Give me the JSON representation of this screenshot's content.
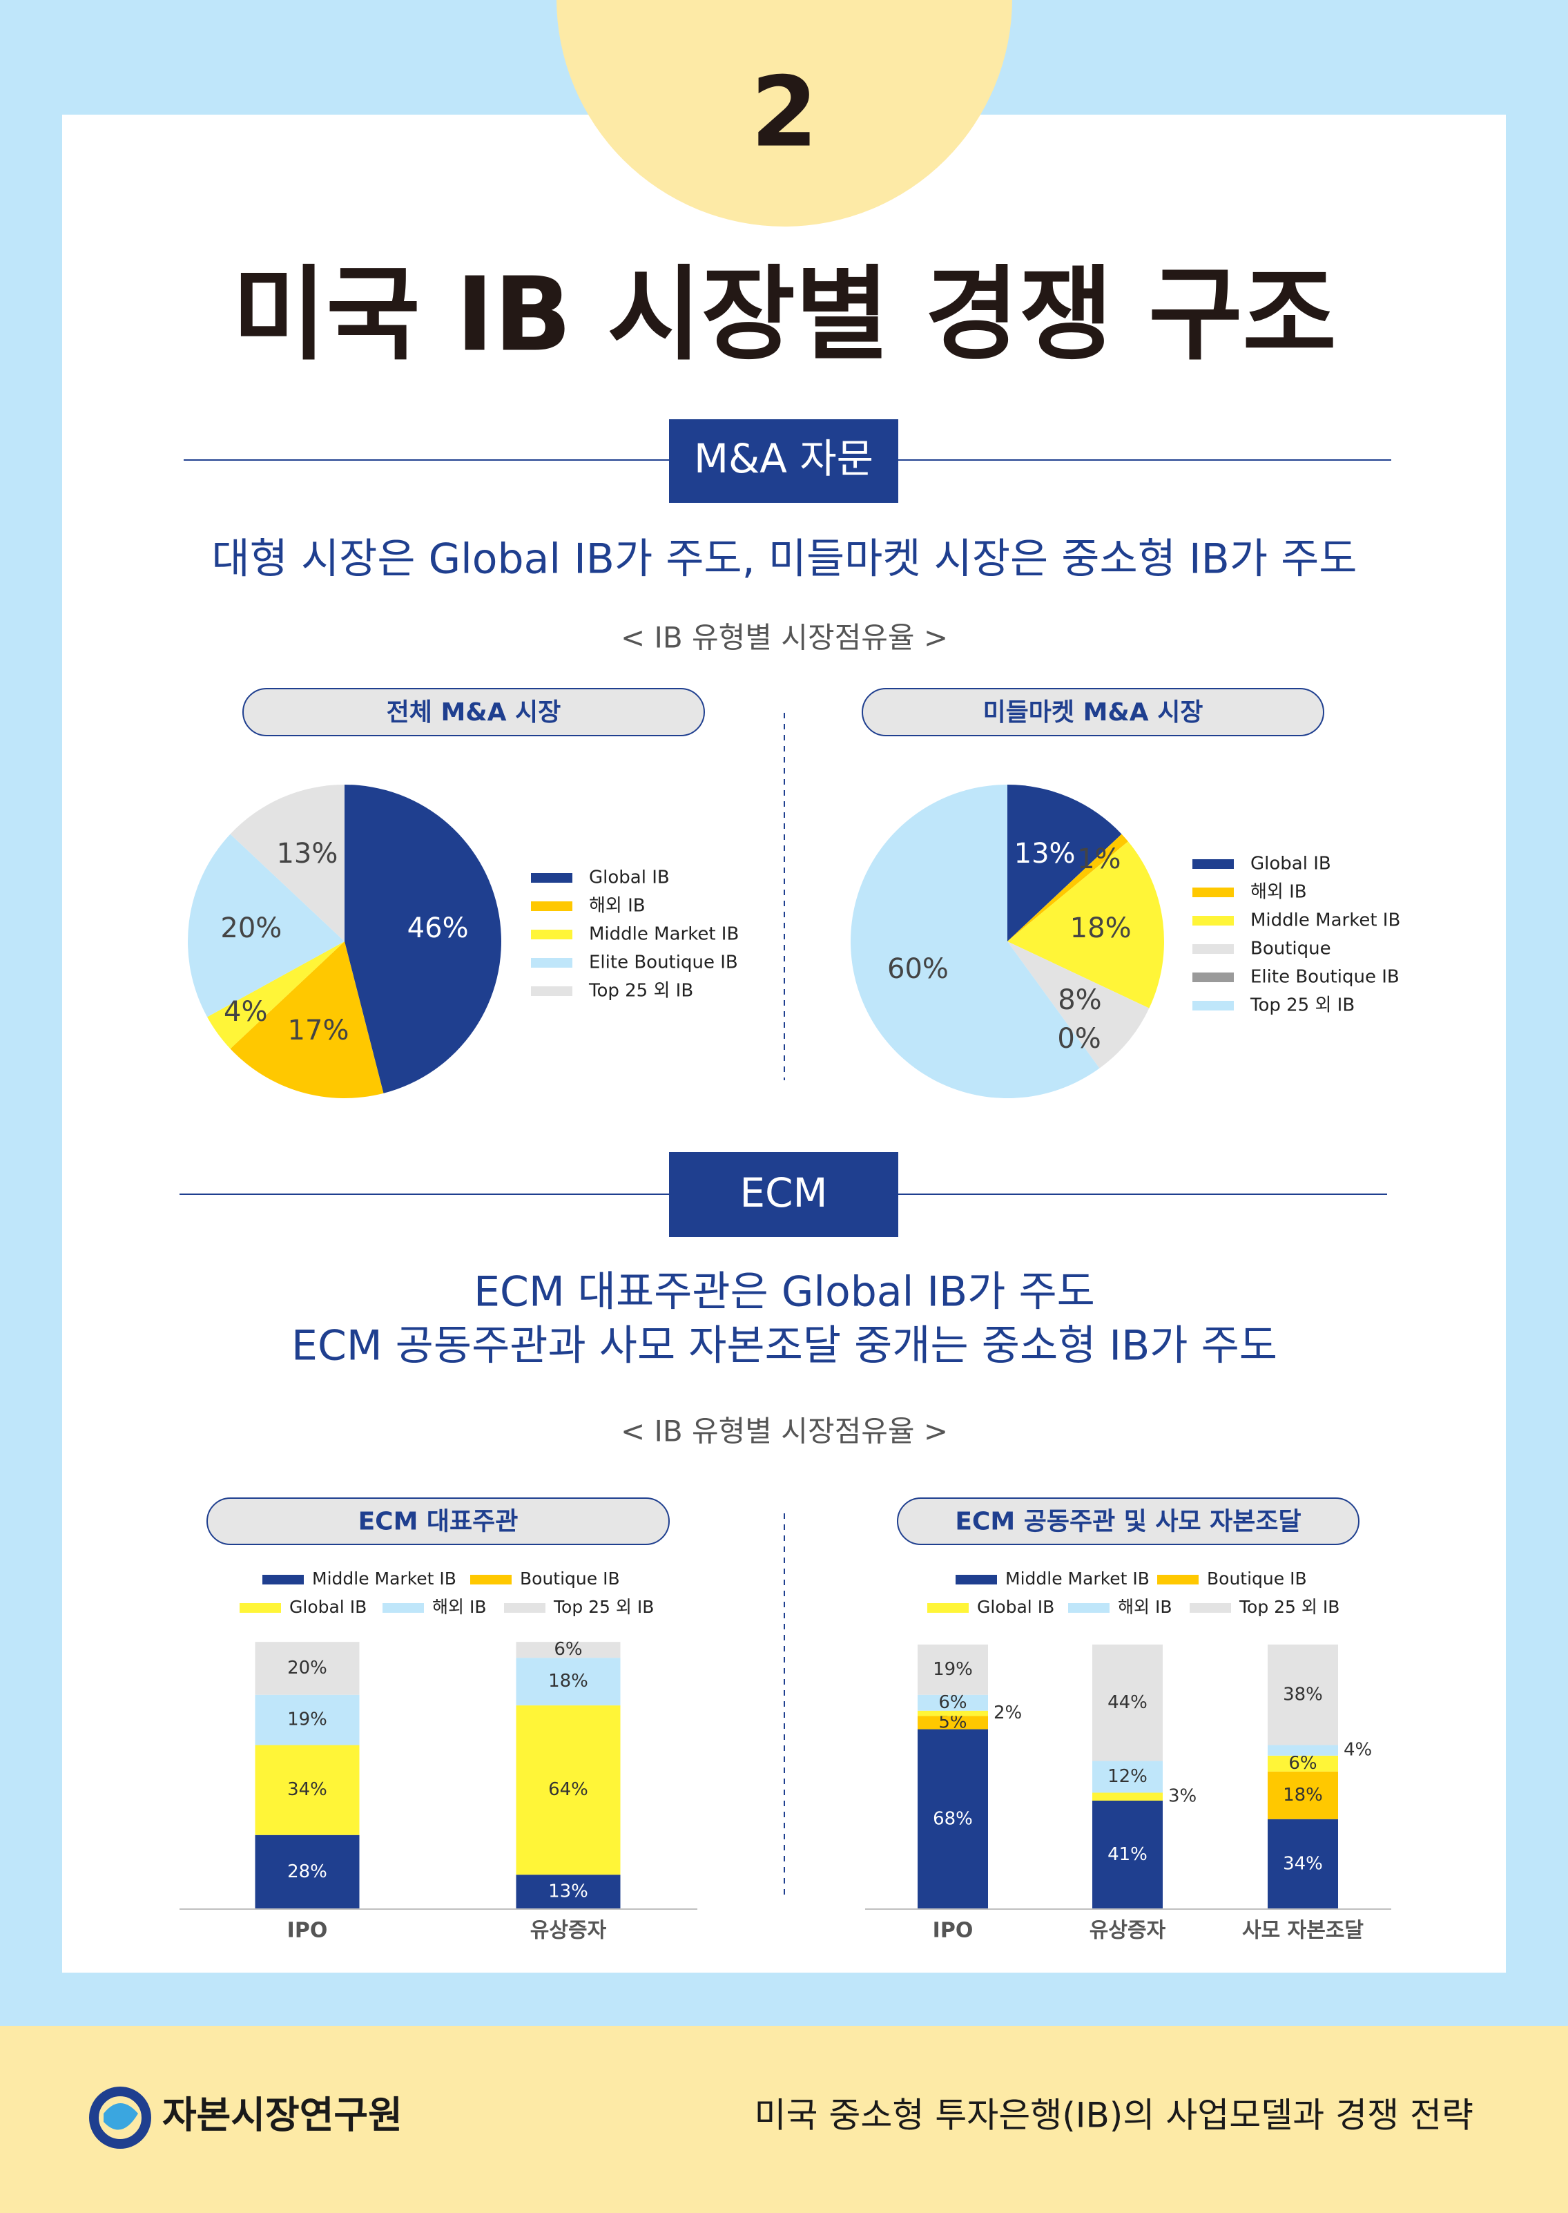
{
  "page_number": "2",
  "title": "미국 IB 시장별 경쟁 구조",
  "sections": [
    {
      "label": "M&A 자문",
      "headline": [
        "대형 시장은 Global IB가 주도, 미들마켓 시장은 중소형 IB가 주도"
      ],
      "caption": "< IB 유형별 시장점유율 >"
    },
    {
      "label": "ECM",
      "headline": [
        "ECM 대표주관은 Global IB가 주도",
        "ECM 공동주관과 사모 자본조달 중개는 중소형 IB가 주도"
      ],
      "caption": "< IB 유형별 시장점유율 >"
    }
  ],
  "chart_data": [
    {
      "type": "pie",
      "title": "전체 M&A 시장",
      "categories": [
        "Global IB",
        "해외 IB",
        "Middle Market IB",
        "Elite Boutique IB",
        "Top 25 외 IB"
      ],
      "values": [
        46,
        17,
        4,
        20,
        13
      ],
      "value_labels": [
        "46%",
        "17%",
        "4%",
        "20%",
        "13%"
      ],
      "colors": [
        "#1f3f8f",
        "#ffc800",
        "#fff538",
        "#bfe6fa",
        "#e3e3e3"
      ]
    },
    {
      "type": "pie",
      "title": "미들마켓 M&A 시장",
      "categories": [
        "Global IB",
        "해외 IB",
        "Middle Market IB",
        "Boutique",
        "Elite Boutique IB",
        "Top 25 외 IB"
      ],
      "values": [
        13,
        1,
        18,
        8,
        0,
        60
      ],
      "value_labels": [
        "13%",
        "1%",
        "18%",
        "8%",
        "0%",
        "60%"
      ],
      "colors": [
        "#1f3f8f",
        "#ffc800",
        "#fff538",
        "#e3e3e3",
        "#9a9a9a",
        "#bfe6fa"
      ]
    },
    {
      "type": "stacked_bar",
      "title": "ECM 대표주관",
      "categories": [
        "IPO",
        "유상증자"
      ],
      "ylim": [
        0,
        100
      ],
      "series": [
        {
          "name": "Middle Market IB",
          "color": "#1f3f8f",
          "values": [
            28,
            13
          ],
          "value_labels": [
            "28%",
            "13%"
          ]
        },
        {
          "name": "Boutique IB",
          "color": "#ffc800",
          "values": [
            0,
            0
          ],
          "value_labels": [
            null,
            null
          ]
        },
        {
          "name": "Global IB",
          "color": "#fff538",
          "values": [
            34,
            64
          ],
          "value_labels": [
            "34%",
            "64%"
          ]
        },
        {
          "name": "해외 IB",
          "color": "#bfe6fa",
          "values": [
            19,
            18
          ],
          "value_labels": [
            "19%",
            "18%"
          ]
        },
        {
          "name": "Top 25 외 IB",
          "color": "#e3e3e3",
          "values": [
            20,
            6
          ],
          "value_labels": [
            "20%",
            "6%"
          ]
        }
      ]
    },
    {
      "type": "stacked_bar",
      "title": "ECM 공동주관 및 사모 자본조달",
      "categories": [
        "IPO",
        "유상증자",
        "사모 자본조달"
      ],
      "ylim": [
        0,
        100
      ],
      "series": [
        {
          "name": "Middle Market IB",
          "color": "#1f3f8f",
          "values": [
            68,
            41,
            34
          ],
          "value_labels": [
            "68%",
            "41%",
            "34%"
          ]
        },
        {
          "name": "Boutique IB",
          "color": "#ffc800",
          "values": [
            5,
            0,
            18
          ],
          "value_labels": [
            "5%",
            null,
            "18%"
          ]
        },
        {
          "name": "Global IB",
          "color": "#fff538",
          "values": [
            2,
            3,
            6
          ],
          "value_labels": [
            "2%",
            "3%",
            "6%"
          ]
        },
        {
          "name": "해외 IB",
          "color": "#bfe6fa",
          "values": [
            6,
            12,
            4
          ],
          "value_labels": [
            "6%",
            "12%",
            "4%"
          ]
        },
        {
          "name": "Top 25 외 IB",
          "color": "#e3e3e3",
          "values": [
            19,
            44,
            38
          ],
          "value_labels": [
            "19%",
            "44%",
            "38%"
          ]
        }
      ]
    }
  ],
  "footer": {
    "organization": "자본시장연구원",
    "report_title": "미국 중소형 투자은행(IB)의 사업모델과 경쟁 전략"
  }
}
